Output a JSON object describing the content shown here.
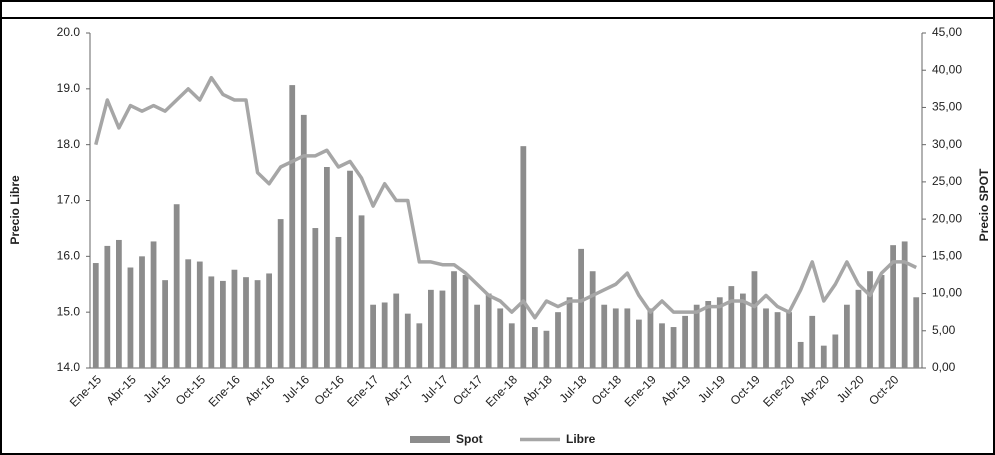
{
  "chart_data": {
    "type": "bar_line",
    "categories": [
      "Ene-15",
      null,
      null,
      "Abr-15",
      null,
      null,
      "Jul-15",
      null,
      null,
      "Oct-15",
      null,
      null,
      "Ene-16",
      null,
      null,
      "Abr-16",
      null,
      null,
      "Jul-16",
      null,
      null,
      "Oct-16",
      null,
      null,
      "Ene-17",
      null,
      null,
      "Abr-17",
      null,
      null,
      "Jul-17",
      null,
      null,
      "Oct-17",
      null,
      null,
      "Ene-18",
      null,
      null,
      "Abr-18",
      null,
      null,
      "Jul-18",
      null,
      null,
      "Oct-18",
      null,
      null,
      "Ene-19",
      null,
      null,
      "Abr-19",
      null,
      null,
      "Jul-19",
      null,
      null,
      "Oct-19",
      null,
      null,
      "Ene-20",
      null,
      null,
      "Abr-20",
      null,
      null,
      "Jul-20",
      null,
      null,
      "Oct-20",
      null,
      null
    ],
    "series": [
      {
        "name": "Spot",
        "kind": "bar",
        "axis": "y2",
        "color": "#8c8c8c",
        "values": [
          14.1,
          16.4,
          17.2,
          13.5,
          15.0,
          17.0,
          11.8,
          22.0,
          14.6,
          14.3,
          12.3,
          11.7,
          13.2,
          12.2,
          11.8,
          12.7,
          20.0,
          38.0,
          34.0,
          18.8,
          27.0,
          17.6,
          26.5,
          20.5,
          8.5,
          8.8,
          10.0,
          7.3,
          6.0,
          10.5,
          10.4,
          13.0,
          12.5,
          8.5,
          10.0,
          8.0,
          6.0,
          29.8,
          5.5,
          5.0,
          7.5,
          9.5,
          16.0,
          13.0,
          8.5,
          8.0,
          8.0,
          6.5,
          8.0,
          6.0,
          5.5,
          7.0,
          8.5,
          9.0,
          9.5,
          11.0,
          10.0,
          13.0,
          8.0,
          7.5,
          7.5,
          3.5,
          7.0,
          3.0,
          4.5,
          8.5,
          10.5,
          13.0,
          12.5,
          16.5,
          17.0,
          9.5
        ]
      },
      {
        "name": "Libre",
        "kind": "line",
        "axis": "y",
        "color": "#a6a6a6",
        "values": [
          18.0,
          18.8,
          18.3,
          18.7,
          18.6,
          18.7,
          18.6,
          18.8,
          19.0,
          18.8,
          19.2,
          18.9,
          18.8,
          18.8,
          17.5,
          17.3,
          17.6,
          17.7,
          17.8,
          17.8,
          17.9,
          17.6,
          17.7,
          17.4,
          16.9,
          17.3,
          17.0,
          17.0,
          15.9,
          15.9,
          15.85,
          15.85,
          15.7,
          15.5,
          15.3,
          15.2,
          15.0,
          15.2,
          14.9,
          15.2,
          15.1,
          15.2,
          15.2,
          15.3,
          15.4,
          15.5,
          15.7,
          15.3,
          15.0,
          15.2,
          15.0,
          15.0,
          15.0,
          15.1,
          15.1,
          15.2,
          15.2,
          15.1,
          15.3,
          15.1,
          15.0,
          15.4,
          15.9,
          15.2,
          15.5,
          15.9,
          15.5,
          15.3,
          15.7,
          15.9,
          15.9,
          15.8
        ]
      }
    ],
    "y_label": "Precio Libre",
    "y2_label": "Precio SPOT",
    "ylim": [
      14,
      20
    ],
    "yticks": [
      {
        "value": 14,
        "label": "14.0"
      },
      {
        "value": 15,
        "label": "15.0"
      },
      {
        "value": 16,
        "label": "16.0"
      },
      {
        "value": 17,
        "label": "17.0"
      },
      {
        "value": 18,
        "label": "18.0"
      },
      {
        "value": 19,
        "label": "19.0"
      },
      {
        "value": 20,
        "label": "20.0"
      }
    ],
    "y2lim": [
      0,
      45
    ],
    "y2ticks": [
      {
        "value": 0,
        "label": "0,00"
      },
      {
        "value": 5,
        "label": "5,00"
      },
      {
        "value": 10,
        "label": "10,00"
      },
      {
        "value": 15,
        "label": "15,00"
      },
      {
        "value": 20,
        "label": "20,00"
      },
      {
        "value": 25,
        "label": "25,00"
      },
      {
        "value": 30,
        "label": "30,00"
      },
      {
        "value": 35,
        "label": "35,00"
      },
      {
        "value": 40,
        "label": "40,00"
      },
      {
        "value": 45,
        "label": "45,00"
      }
    ],
    "legend": "bottom"
  }
}
